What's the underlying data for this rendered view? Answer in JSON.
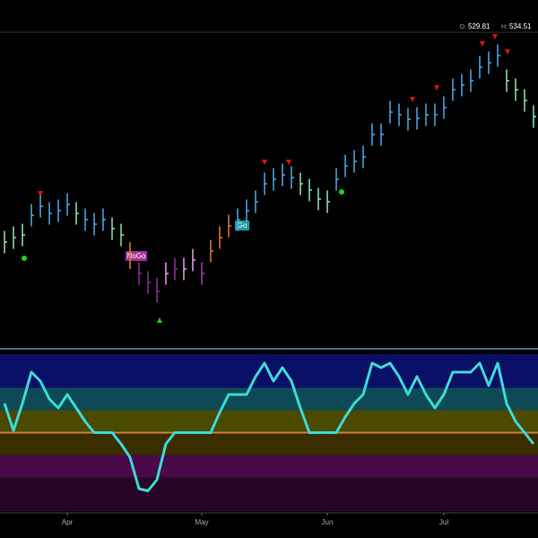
{
  "chart_data": [
    {
      "type": "ohlc",
      "quote": [
        {
          "label": "O:",
          "value": 529.81
        },
        {
          "label": "H:",
          "value": 534.51
        }
      ],
      "annotations": [
        {
          "text": "NoGo",
          "color": "#a3309c"
        },
        {
          "text": "Go",
          "color": "#1f9e9e"
        }
      ],
      "ylim": [
        400,
        540
      ],
      "close": [
        446,
        448,
        449.2,
        458,
        462,
        458.8,
        460,
        462.8,
        458.8,
        456,
        454,
        456,
        452,
        449.2,
        440,
        432,
        428,
        424,
        432,
        434,
        434,
        438,
        432,
        442,
        448,
        453.2,
        456,
        460,
        464,
        472,
        474,
        476,
        474.8,
        472,
        469.2,
        465.2,
        464,
        474,
        480,
        482,
        484,
        494,
        494,
        504,
        502.8,
        500.8,
        501.2,
        502.8,
        502.8,
        506,
        514,
        516,
        518,
        524,
        526,
        529.2,
        518,
        514,
        509.2,
        502
      ],
      "high": [
        451,
        453,
        454.2,
        463,
        467,
        463.8,
        465,
        467.8,
        463.8,
        461,
        459,
        461,
        457,
        454.2,
        446,
        437,
        433,
        430,
        437,
        439,
        439,
        443,
        437,
        447,
        453,
        458.2,
        461,
        465,
        469,
        477,
        479,
        481,
        479.8,
        477,
        474.2,
        470.2,
        469,
        479,
        485,
        487,
        489,
        499,
        499,
        509,
        507.8,
        505.8,
        506.2,
        507.8,
        507.8,
        511,
        519,
        521,
        523,
        529,
        531,
        534.2,
        523,
        519,
        514.2,
        507
      ],
      "low": [
        441,
        443,
        444.2,
        453,
        457,
        453.8,
        455,
        457.8,
        453.8,
        451,
        449,
        451,
        447,
        444.2,
        434,
        427,
        423,
        419,
        427,
        429,
        429,
        433,
        427,
        437,
        443,
        448.2,
        451,
        455,
        459,
        467,
        469,
        471,
        469.8,
        467,
        464.2,
        460.2,
        459,
        469,
        475,
        477,
        479,
        489,
        489,
        499,
        497.8,
        495.8,
        496.2,
        497.8,
        497.8,
        501,
        509,
        511,
        513,
        519,
        521,
        524.2,
        513,
        509,
        504.2,
        497
      ],
      "bar_colors": [
        "#8fe3b0",
        "#8fe3b0",
        "#8fe3b0",
        "#4aa8e8",
        "#4aa8e8",
        "#4aa8e8",
        "#4aa8e8",
        "#4aa8e8",
        "#8fe3b0",
        "#4aa8e8",
        "#4aa8e8",
        "#4aa8e8",
        "#8fe3b0",
        "#8fe3b0",
        "#e07a30",
        "#8e2f9c",
        "#8e2f9c",
        "#8e2f9c",
        "#e6a0e6",
        "#8e2f9c",
        "#e6a0e6",
        "#e6a0e6",
        "#a040b0",
        "#e07a30",
        "#e07a30",
        "#e07a30",
        "#4aa8e8",
        "#4aa8e8",
        "#4aa8e8",
        "#4aa8e8",
        "#4aa8e8",
        "#4aa8e8",
        "#4aa8e8",
        "#8fe3b0",
        "#8fe3b0",
        "#8fe3b0",
        "#8fe3b0",
        "#4aa8e8",
        "#4aa8e8",
        "#4aa8e8",
        "#4aa8e8",
        "#4aa8e8",
        "#4aa8e8",
        "#4aa8e8",
        "#4aa8e8",
        "#4aa8e8",
        "#4aa8e8",
        "#4aa8e8",
        "#4aa8e8",
        "#4aa8e8",
        "#4aa8e8",
        "#4aa8e8",
        "#4aa8e8",
        "#4aa8e8",
        "#4aa8e8",
        "#4aa8e8",
        "#8fe3b0",
        "#8fe3b0",
        "#8fe3b0",
        "#8fe3b0"
      ]
    },
    {
      "type": "line",
      "color": "#3dd9d9",
      "ylim": [
        -3.5,
        3.5
      ],
      "categories": [
        null,
        null,
        null,
        null,
        null,
        null,
        null,
        "Apr",
        null,
        null,
        null,
        null,
        null,
        null,
        null,
        null,
        null,
        null,
        null,
        null,
        null,
        null,
        "May",
        null,
        null,
        null,
        null,
        null,
        null,
        null,
        null,
        null,
        null,
        null,
        null,
        null,
        "Jun",
        null,
        null,
        null,
        null,
        null,
        null,
        null,
        null,
        null,
        null,
        null,
        null,
        "Jul",
        null,
        null,
        null,
        null,
        null,
        null,
        null,
        null,
        null,
        null
      ],
      "values": [
        1.3,
        0.1,
        1.3,
        2.7,
        2.3,
        1.5,
        1.1,
        1.7,
        1.1,
        0.5,
        0,
        0,
        0,
        -0.5,
        -1.1,
        -2.5,
        -2.6,
        -2.1,
        -0.5,
        0,
        0,
        0,
        0,
        0,
        0.9,
        1.7,
        1.7,
        1.7,
        2.5,
        3.1,
        2.3,
        2.9,
        2.3,
        1.1,
        0,
        0,
        0,
        0,
        0.7,
        1.3,
        1.7,
        3.1,
        2.9,
        3.1,
        2.5,
        1.7,
        2.5,
        1.7,
        1.1,
        1.7,
        2.7,
        2.7,
        2.7,
        3.1,
        2.1,
        3.1,
        1.3,
        0.5,
        0,
        -0.5
      ]
    }
  ]
}
